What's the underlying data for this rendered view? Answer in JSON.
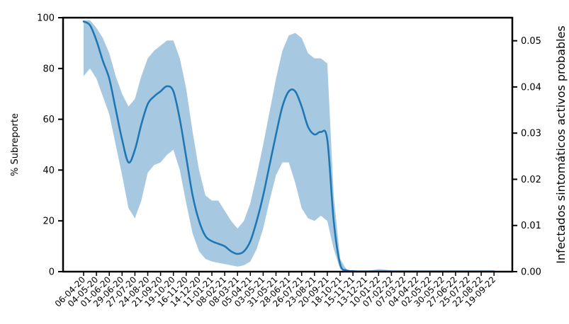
{
  "chart_data": {
    "type": "line",
    "title": "",
    "xlabel": "",
    "ylabel": "% Subreporte",
    "ylabel_right": "Infectados sintomáticos activos probables",
    "ylim": [
      0,
      100
    ],
    "ylim_right": [
      0,
      0.055
    ],
    "y_ticks": [
      0,
      20,
      40,
      60,
      80,
      100
    ],
    "y_ticks_right": [
      "0.00",
      "0.01",
      "0.02",
      "0.03",
      "0.04",
      "0.05"
    ],
    "grid": false,
    "legend": "none",
    "x_tick_labels": [
      "06-04-20",
      "04-05-20",
      "01-06-20",
      "29-06-20",
      "27-07-20",
      "24-08-20",
      "21-09-20",
      "19-10-20",
      "16-11-20",
      "14-12-20",
      "11-01-21",
      "08-02-21",
      "08-03-21",
      "05-04-21",
      "03-05-21",
      "31-05-21",
      "28-06-21",
      "26-07-21",
      "23-08-21",
      "20-09-21",
      "18-10-21",
      "15-11-21",
      "13-12-21",
      "10-01-22",
      "07-02-22",
      "07-03-22",
      "04-04-22",
      "02-05-22",
      "30-05-22",
      "27-06-22",
      "25-07-22",
      "22-08-22",
      "19-09-22"
    ],
    "x_start": "2020-04-06",
    "series": [
      {
        "axis": "left",
        "color": "#1f77b4",
        "dates": [
          "2020-04-06",
          "2020-04-20",
          "2020-05-04",
          "2020-05-18",
          "2020-06-01",
          "2020-06-15",
          "2020-06-29",
          "2020-07-13",
          "2020-07-27",
          "2020-08-10",
          "2020-08-24",
          "2020-09-07",
          "2020-09-21",
          "2020-10-05",
          "2020-10-19",
          "2020-11-02",
          "2020-11-16",
          "2020-11-30",
          "2020-12-14",
          "2020-12-28",
          "2021-01-11",
          "2021-01-25",
          "2021-02-08",
          "2021-02-22",
          "2021-03-08",
          "2021-03-22",
          "2021-04-05",
          "2021-04-19",
          "2021-05-03",
          "2021-05-17",
          "2021-05-31",
          "2021-06-14",
          "2021-06-28",
          "2021-07-12",
          "2021-07-26",
          "2021-08-09",
          "2021-08-23",
          "2021-09-06",
          "2021-09-20",
          "2021-10-04",
          "2021-10-18",
          "2021-11-01",
          "2021-11-15",
          "2021-11-29",
          "2021-12-13",
          "2021-12-27",
          "2022-01-10",
          "2022-01-24",
          "2022-02-07",
          "2022-03-07",
          "2022-04-04",
          "2022-05-02",
          "2022-05-30",
          "2022-06-27",
          "2022-07-25",
          "2022-08-22",
          "2022-09-19"
        ],
        "values": [
          98.5,
          97,
          91,
          83,
          76,
          64,
          52,
          43,
          48,
          58,
          66,
          69,
          71,
          73,
          71,
          60,
          45,
          30,
          20,
          14,
          12,
          11,
          10,
          8,
          7,
          8,
          12,
          20,
          30,
          42,
          54,
          65,
          71,
          71,
          65,
          57,
          54,
          55,
          52,
          20,
          3,
          0.5,
          0.2,
          0.1,
          0.1,
          0.1,
          0.1,
          0.1,
          0.1,
          0.1,
          0.1,
          0.1,
          0.1,
          0.1,
          0.1,
          0.1,
          0.1
        ],
        "band_upper": [
          99,
          99,
          96,
          92,
          86,
          77,
          70,
          65,
          68,
          77,
          84,
          87,
          89,
          91,
          91,
          84,
          72,
          55,
          40,
          30,
          28,
          28,
          24,
          20,
          17,
          20,
          27,
          38,
          50,
          63,
          76,
          87,
          93,
          94,
          92,
          86,
          84,
          84,
          82,
          30,
          5,
          0.8,
          0.4,
          0.3,
          0.3,
          0.6,
          1,
          0.8,
          0.5,
          0.3,
          0.3,
          0.2,
          0.2,
          0.2,
          0.2,
          0.2,
          0.2
        ],
        "band_lower": [
          77,
          80,
          76,
          69,
          62,
          50,
          38,
          25,
          21,
          28,
          39,
          42,
          43,
          46,
          48,
          40,
          27,
          15,
          8,
          5,
          4,
          3.5,
          3,
          2.5,
          2,
          2.5,
          4,
          9,
          17,
          28,
          38,
          43,
          43,
          35,
          25,
          21,
          20,
          22,
          20,
          9,
          1,
          0,
          0,
          0,
          0,
          0,
          0,
          0,
          0,
          0,
          0,
          0,
          0,
          0,
          0,
          0,
          0
        ]
      }
    ]
  }
}
